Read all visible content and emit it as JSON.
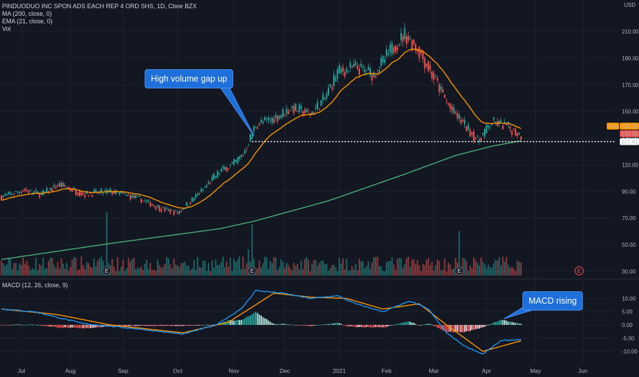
{
  "header": {
    "symbol": "PINDUODUO INC SPON ADS EACH REP 4 ORD SHS, 1D, Cboe BZX",
    "ma_label": "MA (200, close, 0)",
    "ema_label": "EMA (21, close, 0)",
    "vol_label": "Vol",
    "currency": "USD"
  },
  "macd_label": "MACD (12, 26, close, 9)",
  "annotations": {
    "gap": "High volume gap up",
    "macd": "MACD rising"
  },
  "price_tags": {
    "pre_label": "Pre",
    "pre_value": "135.50",
    "last_value": "133.32",
    "support_value": "127.41"
  },
  "earnings_marker": "E",
  "colors": {
    "background": "#131722",
    "up": "#26a69a",
    "down": "#ef5350",
    "ema": "#ff9800",
    "ma": "#4caf7a",
    "macd": "#2196f3",
    "signal": "#ff9800",
    "callout": "#1e6fd9"
  },
  "chart_data": [
    {
      "type": "candlestick",
      "y_ticks": [
        "210.00",
        "190.00",
        "170.00",
        "150.00",
        "130.00",
        "110.00",
        "90.00",
        "70.00",
        "50.00",
        "30.00"
      ],
      "x_ticks": [
        "Jul",
        "Aug",
        "Sep",
        "Oct",
        "Nov",
        "Dec",
        "2021",
        "Feb",
        "Mar",
        "Apr",
        "May",
        "Jun"
      ],
      "price_anchors": [
        {
          "day": 0,
          "value": 86
        },
        {
          "day": 12,
          "value": 91
        },
        {
          "day": 22,
          "value": 88
        },
        {
          "day": 32,
          "value": 95
        },
        {
          "day": 45,
          "value": 88
        },
        {
          "day": 60,
          "value": 90
        },
        {
          "day": 75,
          "value": 85
        },
        {
          "day": 88,
          "value": 77
        },
        {
          "day": 97,
          "value": 74
        },
        {
          "day": 110,
          "value": 90
        },
        {
          "day": 120,
          "value": 105
        },
        {
          "day": 128,
          "value": 111
        },
        {
          "day": 133,
          "value": 118
        },
        {
          "day": 140,
          "value": 140
        },
        {
          "day": 150,
          "value": 145
        },
        {
          "day": 160,
          "value": 153
        },
        {
          "day": 170,
          "value": 148
        },
        {
          "day": 178,
          "value": 160
        },
        {
          "day": 185,
          "value": 180
        },
        {
          "day": 195,
          "value": 183
        },
        {
          "day": 205,
          "value": 178
        },
        {
          "day": 215,
          "value": 197
        },
        {
          "day": 222,
          "value": 208
        },
        {
          "day": 230,
          "value": 195
        },
        {
          "day": 240,
          "value": 170
        },
        {
          "day": 247,
          "value": 152
        },
        {
          "day": 255,
          "value": 140
        },
        {
          "day": 262,
          "value": 128
        },
        {
          "day": 270,
          "value": 142
        },
        {
          "day": 278,
          "value": 139
        },
        {
          "day": 286,
          "value": 132
        }
      ],
      "ma200_anchors": [
        {
          "day": 0,
          "value": 39
        },
        {
          "day": 60,
          "value": 51
        },
        {
          "day": 120,
          "value": 62
        },
        {
          "day": 140,
          "value": 68
        },
        {
          "day": 180,
          "value": 83
        },
        {
          "day": 220,
          "value": 102
        },
        {
          "day": 250,
          "value": 117
        },
        {
          "day": 270,
          "value": 124
        },
        {
          "day": 286,
          "value": 128
        }
      ],
      "support_level": 127.41,
      "gap_day": 138,
      "earnings_days": [
        58,
        138,
        252
      ],
      "future_earnings_day": 318
    },
    {
      "type": "bar",
      "name": "Vol",
      "tall_bar_days": [
        58,
        138,
        252
      ]
    },
    {
      "type": "line",
      "name": "MACD (12, 26, close, 9)",
      "y_ticks": [
        "10.00",
        "5.00",
        "0.00",
        "-5.00",
        "-10.00"
      ],
      "macd_anchors": [
        {
          "day": 0,
          "value": 6
        },
        {
          "day": 18,
          "value": 5
        },
        {
          "day": 45,
          "value": 0.5
        },
        {
          "day": 75,
          "value": -1.5
        },
        {
          "day": 100,
          "value": -3.5
        },
        {
          "day": 118,
          "value": 0
        },
        {
          "day": 132,
          "value": 6
        },
        {
          "day": 140,
          "value": 13
        },
        {
          "day": 155,
          "value": 12
        },
        {
          "day": 170,
          "value": 10
        },
        {
          "day": 185,
          "value": 11
        },
        {
          "day": 195,
          "value": 8
        },
        {
          "day": 210,
          "value": 5
        },
        {
          "day": 225,
          "value": 9
        },
        {
          "day": 235,
          "value": 6
        },
        {
          "day": 245,
          "value": -3
        },
        {
          "day": 255,
          "value": -8
        },
        {
          "day": 265,
          "value": -11
        },
        {
          "day": 275,
          "value": -6
        },
        {
          "day": 286,
          "value": -5.5
        }
      ],
      "signal_anchors": [
        {
          "day": 0,
          "value": 6
        },
        {
          "day": 30,
          "value": 4
        },
        {
          "day": 60,
          "value": 0
        },
        {
          "day": 100,
          "value": -3
        },
        {
          "day": 125,
          "value": 1
        },
        {
          "day": 150,
          "value": 12
        },
        {
          "day": 170,
          "value": 10.5
        },
        {
          "day": 190,
          "value": 10
        },
        {
          "day": 210,
          "value": 6
        },
        {
          "day": 230,
          "value": 8
        },
        {
          "day": 245,
          "value": 0
        },
        {
          "day": 265,
          "value": -10
        },
        {
          "day": 286,
          "value": -6
        }
      ]
    }
  ]
}
